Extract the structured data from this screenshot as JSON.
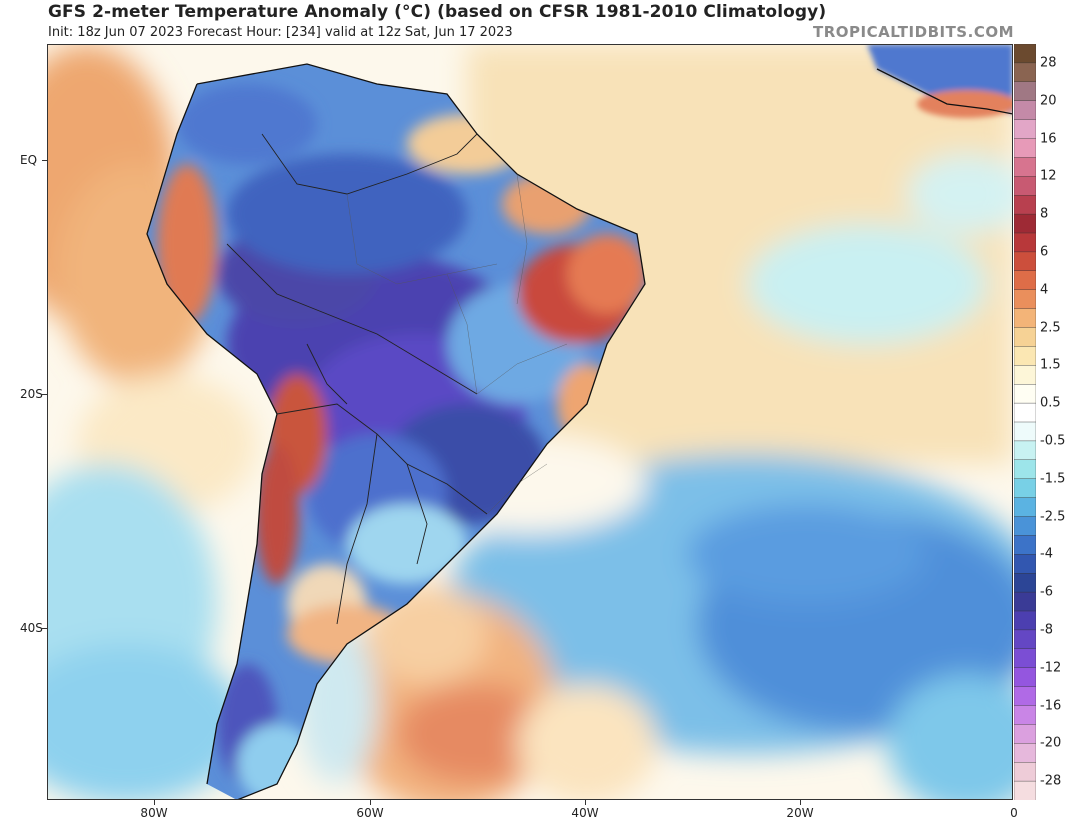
{
  "header": {
    "title": "GFS 2-meter Temperature Anomaly (°C) (based on CFSR 1981-2010 Climatology)",
    "subtitle": "Init: 18z Jun 07 2023   Forecast Hour: [234]   valid at 12z Sat, Jun 17 2023",
    "credit": "TROPICALTIDBITS.COM"
  },
  "axes": {
    "lat_labels": [
      "EQ",
      "20S",
      "40S"
    ],
    "lon_labels": [
      "80W",
      "60W",
      "40W",
      "20W",
      "0"
    ]
  },
  "colorbar": {
    "labels": [
      "28",
      "20",
      "16",
      "12",
      "8",
      "6",
      "4",
      "2.5",
      "1.5",
      "0.5",
      "-0.5",
      "-1.5",
      "-2.5",
      "-4",
      "-6",
      "-8",
      "-12",
      "-16",
      "-20",
      "-28"
    ],
    "colors": [
      "#6b4a2f",
      "#8a6451",
      "#a07884",
      "#c48aa8",
      "#e2a6c7",
      "#e79ab8",
      "#d7748f",
      "#c85a72",
      "#b8404f",
      "#9e2a35",
      "#b8383a",
      "#cc4f3c",
      "#de6d48",
      "#ea8f5c",
      "#f3b478",
      "#f6d295",
      "#fbe7b3",
      "#fdf6d8",
      "#fffef3",
      "#ffffff",
      "#eefbfb",
      "#c8f2f2",
      "#9de5ea",
      "#78d0e6",
      "#5bb3e2",
      "#4a93d8",
      "#3c73c8",
      "#3257b0",
      "#2c4596",
      "#3a3b96",
      "#4c3fb0",
      "#6447c4",
      "#7b4ed4",
      "#9456df",
      "#b06ae6",
      "#c985e6",
      "#dba0df",
      "#e6b8dc",
      "#eeccd8",
      "#f5dde0"
    ],
    "accent_colors": {
      "deep_blue": "#3a47a8",
      "purple": "#5b44c0",
      "red": "#c8433a",
      "orange": "#e8965e",
      "tan": "#f6dcaa",
      "cyan": "#a8e6ee"
    }
  }
}
